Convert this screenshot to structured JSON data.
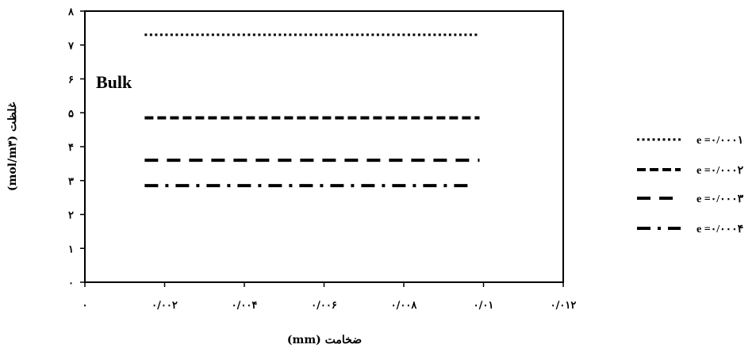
{
  "chart_data": {
    "type": "line",
    "title": "",
    "xlabel": "ضخامت (mm)",
    "ylabel": "غلظت (mol/m۳)",
    "xlim": [
      0,
      0.012
    ],
    "ylim": [
      0,
      8
    ],
    "x_ticks": [
      {
        "value": 0,
        "label": "۰"
      },
      {
        "value": 0.002,
        "label": "۰/۰۰۲"
      },
      {
        "value": 0.004,
        "label": "۰/۰۰۴"
      },
      {
        "value": 0.006,
        "label": "۰/۰۰۶"
      },
      {
        "value": 0.008,
        "label": "۰/۰۰۸"
      },
      {
        "value": 0.01,
        "label": "۰/۰۱"
      },
      {
        "value": 0.012,
        "label": "۰/۰۱۲"
      }
    ],
    "y_ticks": [
      {
        "value": 0,
        "label": "۰"
      },
      {
        "value": 1,
        "label": "۱"
      },
      {
        "value": 2,
        "label": "۲"
      },
      {
        "value": 3,
        "label": "۳"
      },
      {
        "value": 4,
        "label": "۴"
      },
      {
        "value": 5,
        "label": "۵"
      },
      {
        "value": 6,
        "label": "۶"
      },
      {
        "value": 7,
        "label": "۷"
      },
      {
        "value": 8,
        "label": "۸"
      }
    ],
    "grid": false,
    "legend_position": "right",
    "annotation": "Bulk",
    "series": [
      {
        "name": "e =۰/۰۰۰۱",
        "style": "dotted",
        "x": [
          0.0015,
          0.0099
        ],
        "y": [
          7.3,
          7.3
        ]
      },
      {
        "name": "e =۰/۰۰۰۲",
        "style": "dashed",
        "x": [
          0.0015,
          0.0099
        ],
        "y": [
          4.85,
          4.85
        ]
      },
      {
        "name": "e =۰/۰۰۰۳",
        "style": "long-dash",
        "x": [
          0.0015,
          0.0099
        ],
        "y": [
          3.6,
          3.6
        ]
      },
      {
        "name": "e =۰/۰۰۰۴",
        "style": "dash-dot",
        "x": [
          0.0015,
          0.0097
        ],
        "y": [
          2.85,
          2.85
        ]
      }
    ]
  }
}
